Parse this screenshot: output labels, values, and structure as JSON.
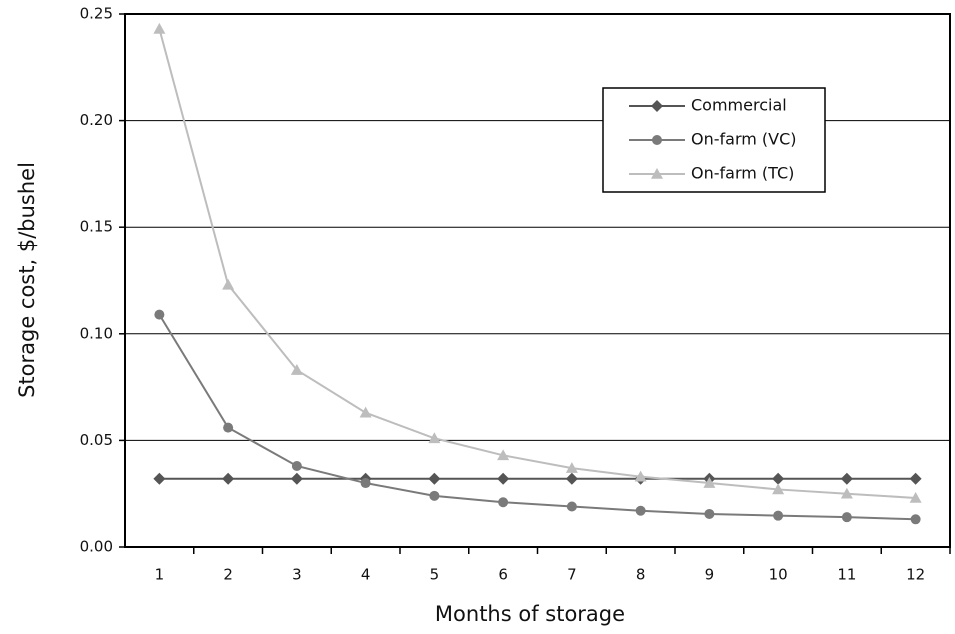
{
  "chart_data": {
    "type": "line",
    "x_label": "Months of storage",
    "y_label": "Storage cost, $/bushel",
    "categories": [
      "1",
      "2",
      "3",
      "4",
      "5",
      "6",
      "7",
      "8",
      "9",
      "10",
      "11",
      "12"
    ],
    "series": [
      {
        "name": "Commercial",
        "color": "#555555",
        "marker": "diamond",
        "values": [
          0.032,
          0.032,
          0.032,
          0.032,
          0.032,
          0.032,
          0.032,
          0.032,
          0.032,
          0.032,
          0.032,
          0.032
        ]
      },
      {
        "name": "On-farm (VC)",
        "color": "#7a7a7a",
        "marker": "circle",
        "values": [
          0.109,
          0.056,
          0.038,
          0.03,
          0.024,
          0.021,
          0.019,
          0.017,
          0.0155,
          0.0147,
          0.014,
          0.013
        ]
      },
      {
        "name": "On-farm (TC)",
        "color": "#bdbdbd",
        "marker": "triangle",
        "values": [
          0.243,
          0.123,
          0.083,
          0.063,
          0.051,
          0.043,
          0.037,
          0.033,
          0.03,
          0.027,
          0.025,
          0.023
        ]
      }
    ],
    "ylim": [
      0,
      0.25
    ],
    "yticks": [
      {
        "value": 0,
        "label": "0.00"
      },
      {
        "value": 0.05,
        "label": "0.05"
      },
      {
        "value": 0.1,
        "label": "0.10"
      },
      {
        "value": 0.15,
        "label": "0.15"
      },
      {
        "value": 0.2,
        "label": "0.20"
      },
      {
        "value": 0.25,
        "label": "0.25"
      }
    ],
    "grid": true,
    "legend": "upper-right"
  }
}
